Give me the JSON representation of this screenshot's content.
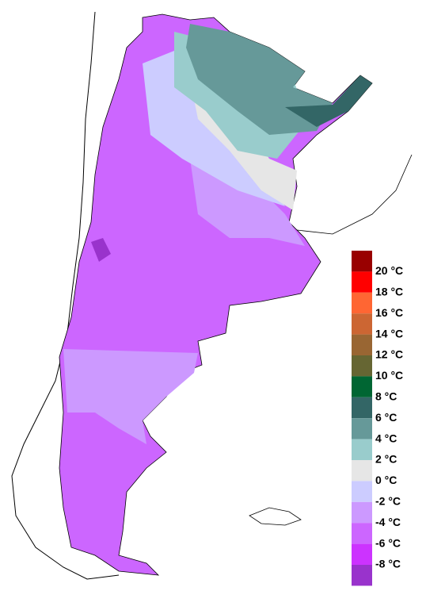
{
  "legend": {
    "labels": [
      "20 °C",
      "18 °C",
      "16 °C",
      "14 °C",
      "12 °C",
      "10 °C",
      "8 °C",
      "6 °C",
      "4 °C",
      "2 °C",
      "0 °C",
      "-2 °C",
      "-4 °C",
      "-6 °C",
      "-8 °C"
    ],
    "colors": [
      "#990000",
      "#ff0000",
      "#ff6633",
      "#cc6633",
      "#996633",
      "#666633",
      "#006633",
      "#336666",
      "#669999",
      "#99cccc",
      "#e6e6e6",
      "#ccccff",
      "#cc99ff",
      "#cc66ff",
      "#cc33ff",
      "#9933cc"
    ]
  }
}
